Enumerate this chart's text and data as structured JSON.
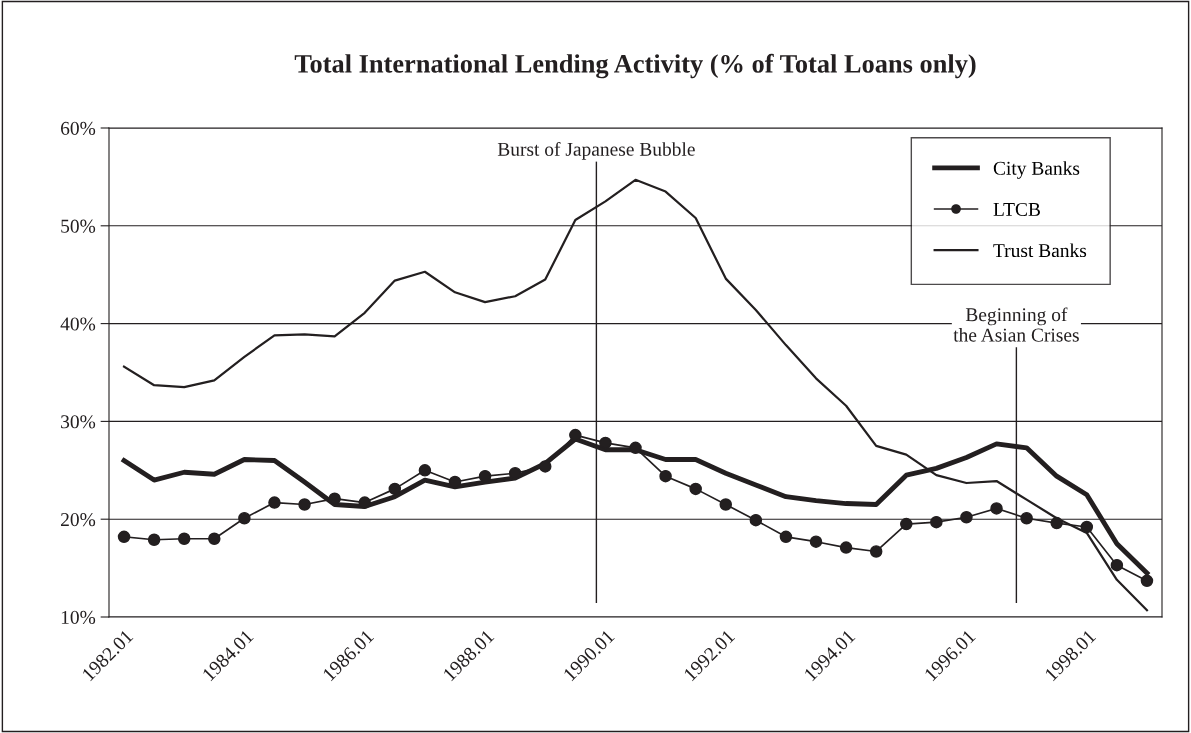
{
  "chart_data": {
    "type": "line",
    "title": "Total International Lending Activity (% of Total Loans only)",
    "x": [
      1982.0,
      1982.5,
      1983.0,
      1983.5,
      1984.0,
      1984.5,
      1985.0,
      1985.5,
      1986.0,
      1986.5,
      1987.0,
      1987.5,
      1988.0,
      1988.5,
      1989.0,
      1989.5,
      1990.0,
      1990.5,
      1991.0,
      1991.5,
      1992.0,
      1992.5,
      1993.0,
      1993.5,
      1994.0,
      1994.5,
      1995.0,
      1995.5,
      1996.0,
      1996.5,
      1997.0,
      1997.5,
      1998.0,
      1998.5,
      1999.0
    ],
    "series": [
      {
        "name": "City Banks",
        "color": "#231f20",
        "marker": "none",
        "values": [
          26.0,
          24.0,
          24.8,
          24.6,
          26.1,
          26.0,
          23.8,
          21.5,
          21.3,
          22.3,
          24.0,
          23.3,
          23.8,
          24.2,
          25.7,
          28.2,
          27.1,
          27.1,
          26.1,
          26.1,
          24.7,
          23.5,
          22.3,
          21.9,
          21.6,
          21.5,
          24.5,
          25.2,
          26.3,
          27.7,
          27.3,
          24.4,
          22.5,
          17.5,
          14.5
        ]
      },
      {
        "name": "LTCB",
        "color": "#231f20",
        "marker": "circle",
        "values": [
          18.2,
          17.9,
          18.0,
          18.0,
          20.1,
          21.7,
          21.5,
          22.1,
          21.7,
          23.1,
          25.0,
          23.8,
          24.4,
          24.7,
          25.4,
          28.6,
          27.8,
          27.3,
          24.4,
          23.1,
          21.5,
          19.9,
          18.2,
          17.7,
          17.1,
          16.7,
          19.5,
          19.7,
          20.2,
          21.1,
          20.1,
          19.6,
          19.2,
          15.3,
          13.7
        ]
      },
      {
        "name": "Trust Banks",
        "color": "#231f20",
        "marker": "none",
        "values": [
          35.6,
          33.7,
          33.5,
          34.2,
          36.6,
          38.8,
          38.9,
          38.7,
          41.1,
          44.4,
          45.3,
          43.2,
          42.2,
          42.8,
          44.5,
          50.6,
          52.5,
          54.7,
          53.5,
          50.8,
          44.6,
          41.4,
          37.8,
          34.4,
          31.6,
          27.5,
          26.6,
          24.5,
          23.7,
          23.9,
          22.0,
          20.1,
          18.6,
          13.8,
          10.7
        ]
      }
    ],
    "xlim": [
      1981.75,
      1999.25
    ],
    "xticks": [
      1982.01,
      1984.01,
      1986.01,
      1988.01,
      1990.01,
      1992.01,
      1994.01,
      1996.01,
      1998.01
    ],
    "ylim": [
      10,
      60
    ],
    "yticks": [
      {
        "value": 10,
        "label": "10%"
      },
      {
        "value": 20,
        "label": "20%"
      },
      {
        "value": 30,
        "label": "30%"
      },
      {
        "value": 40,
        "label": "40%"
      },
      {
        "value": 50,
        "label": "50%"
      },
      {
        "value": 60,
        "label": "60%"
      }
    ],
    "ref_lines": [
      {
        "axis": "x",
        "value": 1989.85,
        "label": "Burst of Japanese Bubble",
        "color": "#231f20"
      },
      {
        "axis": "x",
        "value": 1996.83,
        "label": "Beginning of\nthe Asian Crises",
        "color": "#231f20"
      }
    ],
    "grid": "y",
    "legend": "top right"
  }
}
